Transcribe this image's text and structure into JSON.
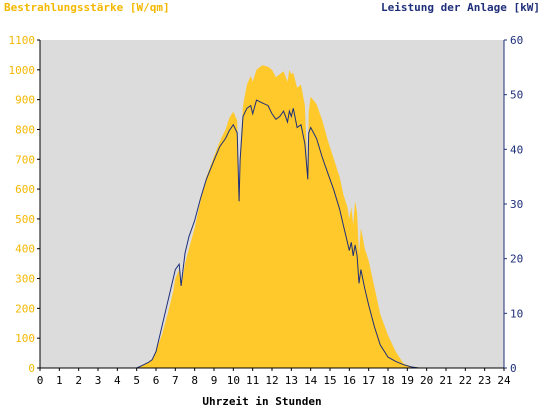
{
  "chart_data": {
    "type": "area",
    "title_left": "Bestrahlungsstärke [W/qm]",
    "title_right": "Leistung der Anlage [kW]",
    "xlabel": "Uhrzeit in Stunden",
    "x_ticks": [
      "0",
      "1",
      "2",
      "3",
      "4",
      "5",
      "6",
      "7",
      "8",
      "9",
      "10",
      "11",
      "12",
      "13",
      "14",
      "15",
      "16",
      "17",
      "18",
      "19",
      "20",
      "21",
      "22",
      "23",
      "24"
    ],
    "y_left_ticks": [
      "0",
      "100",
      "200",
      "300",
      "400",
      "500",
      "600",
      "700",
      "800",
      "900",
      "1000",
      "1100"
    ],
    "y_right_ticks": [
      "0",
      "10",
      "20",
      "30",
      "40",
      "50",
      "60"
    ],
    "xlim": [
      0,
      24
    ],
    "ylim_left": [
      0,
      1100
    ],
    "ylim_right": [
      0,
      60
    ],
    "colors": {
      "plot_bg": "#dcdcdc",
      "irradiance": "#ffc92b",
      "power": "#1f2f7a",
      "left_axis": "#f5b800",
      "right_axis": "#1f2f7a"
    },
    "series": [
      {
        "axis": "left",
        "style": "filled-area",
        "x": [
          0,
          5.0,
          5.3,
          5.6,
          5.8,
          6.0,
          6.3,
          6.6,
          6.9,
          7.0,
          7.2,
          7.3,
          7.5,
          7.7,
          8.0,
          8.3,
          8.6,
          9.0,
          9.3,
          9.6,
          9.8,
          10.0,
          10.2,
          10.3,
          10.35,
          10.5,
          10.7,
          10.9,
          11.0,
          11.2,
          11.5,
          11.8,
          12.0,
          12.2,
          12.4,
          12.6,
          12.8,
          12.9,
          13.0,
          13.1,
          13.3,
          13.5,
          13.7,
          13.85,
          13.9,
          14.0,
          14.3,
          14.6,
          14.9,
          15.2,
          15.5,
          15.7,
          15.9,
          16.0,
          16.1,
          16.2,
          16.3,
          16.4,
          16.5,
          16.6,
          16.8,
          17.0,
          17.3,
          17.6,
          18.0,
          18.4,
          18.8,
          19.2,
          19.6,
          20.0,
          24
        ],
        "values": [
          0,
          0,
          10,
          20,
          30,
          60,
          110,
          180,
          260,
          300,
          330,
          270,
          350,
          400,
          470,
          560,
          640,
          710,
          760,
          800,
          840,
          860,
          830,
          560,
          720,
          880,
          950,
          980,
          960,
          1000,
          1015,
          1010,
          1000,
          975,
          985,
          995,
          960,
          1000,
          985,
          990,
          940,
          950,
          880,
          640,
          860,
          910,
          885,
          830,
          760,
          700,
          640,
          580,
          540,
          500,
          540,
          480,
          560,
          520,
          380,
          470,
          400,
          360,
          270,
          180,
          110,
          55,
          15,
          5,
          2,
          0,
          0
        ]
      },
      {
        "axis": "right",
        "style": "line",
        "x": [
          0,
          5.0,
          5.3,
          5.6,
          5.8,
          6.0,
          6.3,
          6.6,
          6.9,
          7.0,
          7.2,
          7.3,
          7.5,
          7.7,
          8.0,
          8.3,
          8.6,
          9.0,
          9.3,
          9.6,
          9.8,
          10.0,
          10.2,
          10.3,
          10.35,
          10.5,
          10.7,
          10.9,
          11.0,
          11.2,
          11.5,
          11.8,
          12.0,
          12.2,
          12.4,
          12.6,
          12.8,
          12.9,
          13.0,
          13.1,
          13.3,
          13.5,
          13.7,
          13.85,
          13.9,
          14.0,
          14.3,
          14.6,
          14.9,
          15.2,
          15.5,
          15.7,
          15.9,
          16.0,
          16.1,
          16.2,
          16.3,
          16.4,
          16.5,
          16.6,
          16.8,
          17.0,
          17.3,
          17.6,
          18.0,
          18.4,
          18.8,
          19.2,
          19.6,
          20.0,
          24
        ],
        "values": [
          0,
          0,
          0.5,
          1.0,
          1.5,
          3.0,
          7.5,
          12.0,
          16.5,
          18.0,
          19.0,
          15.0,
          21.0,
          24.0,
          27.0,
          31.0,
          34.5,
          38.0,
          40.5,
          42.0,
          43.5,
          44.5,
          43.0,
          30.5,
          38.0,
          46.0,
          47.5,
          48.0,
          46.5,
          49.0,
          48.5,
          48.0,
          46.5,
          45.5,
          46.0,
          47.0,
          45.0,
          47.0,
          46.0,
          47.5,
          44.0,
          44.5,
          41.0,
          34.5,
          43.0,
          44.0,
          42.0,
          38.5,
          35.5,
          32.5,
          29.0,
          26.0,
          23.0,
          21.5,
          23.0,
          20.5,
          22.5,
          20.5,
          15.5,
          18.0,
          14.5,
          11.5,
          7.5,
          4.2,
          2.0,
          1.2,
          0.6,
          0.2,
          0,
          0,
          0
        ]
      }
    ]
  }
}
